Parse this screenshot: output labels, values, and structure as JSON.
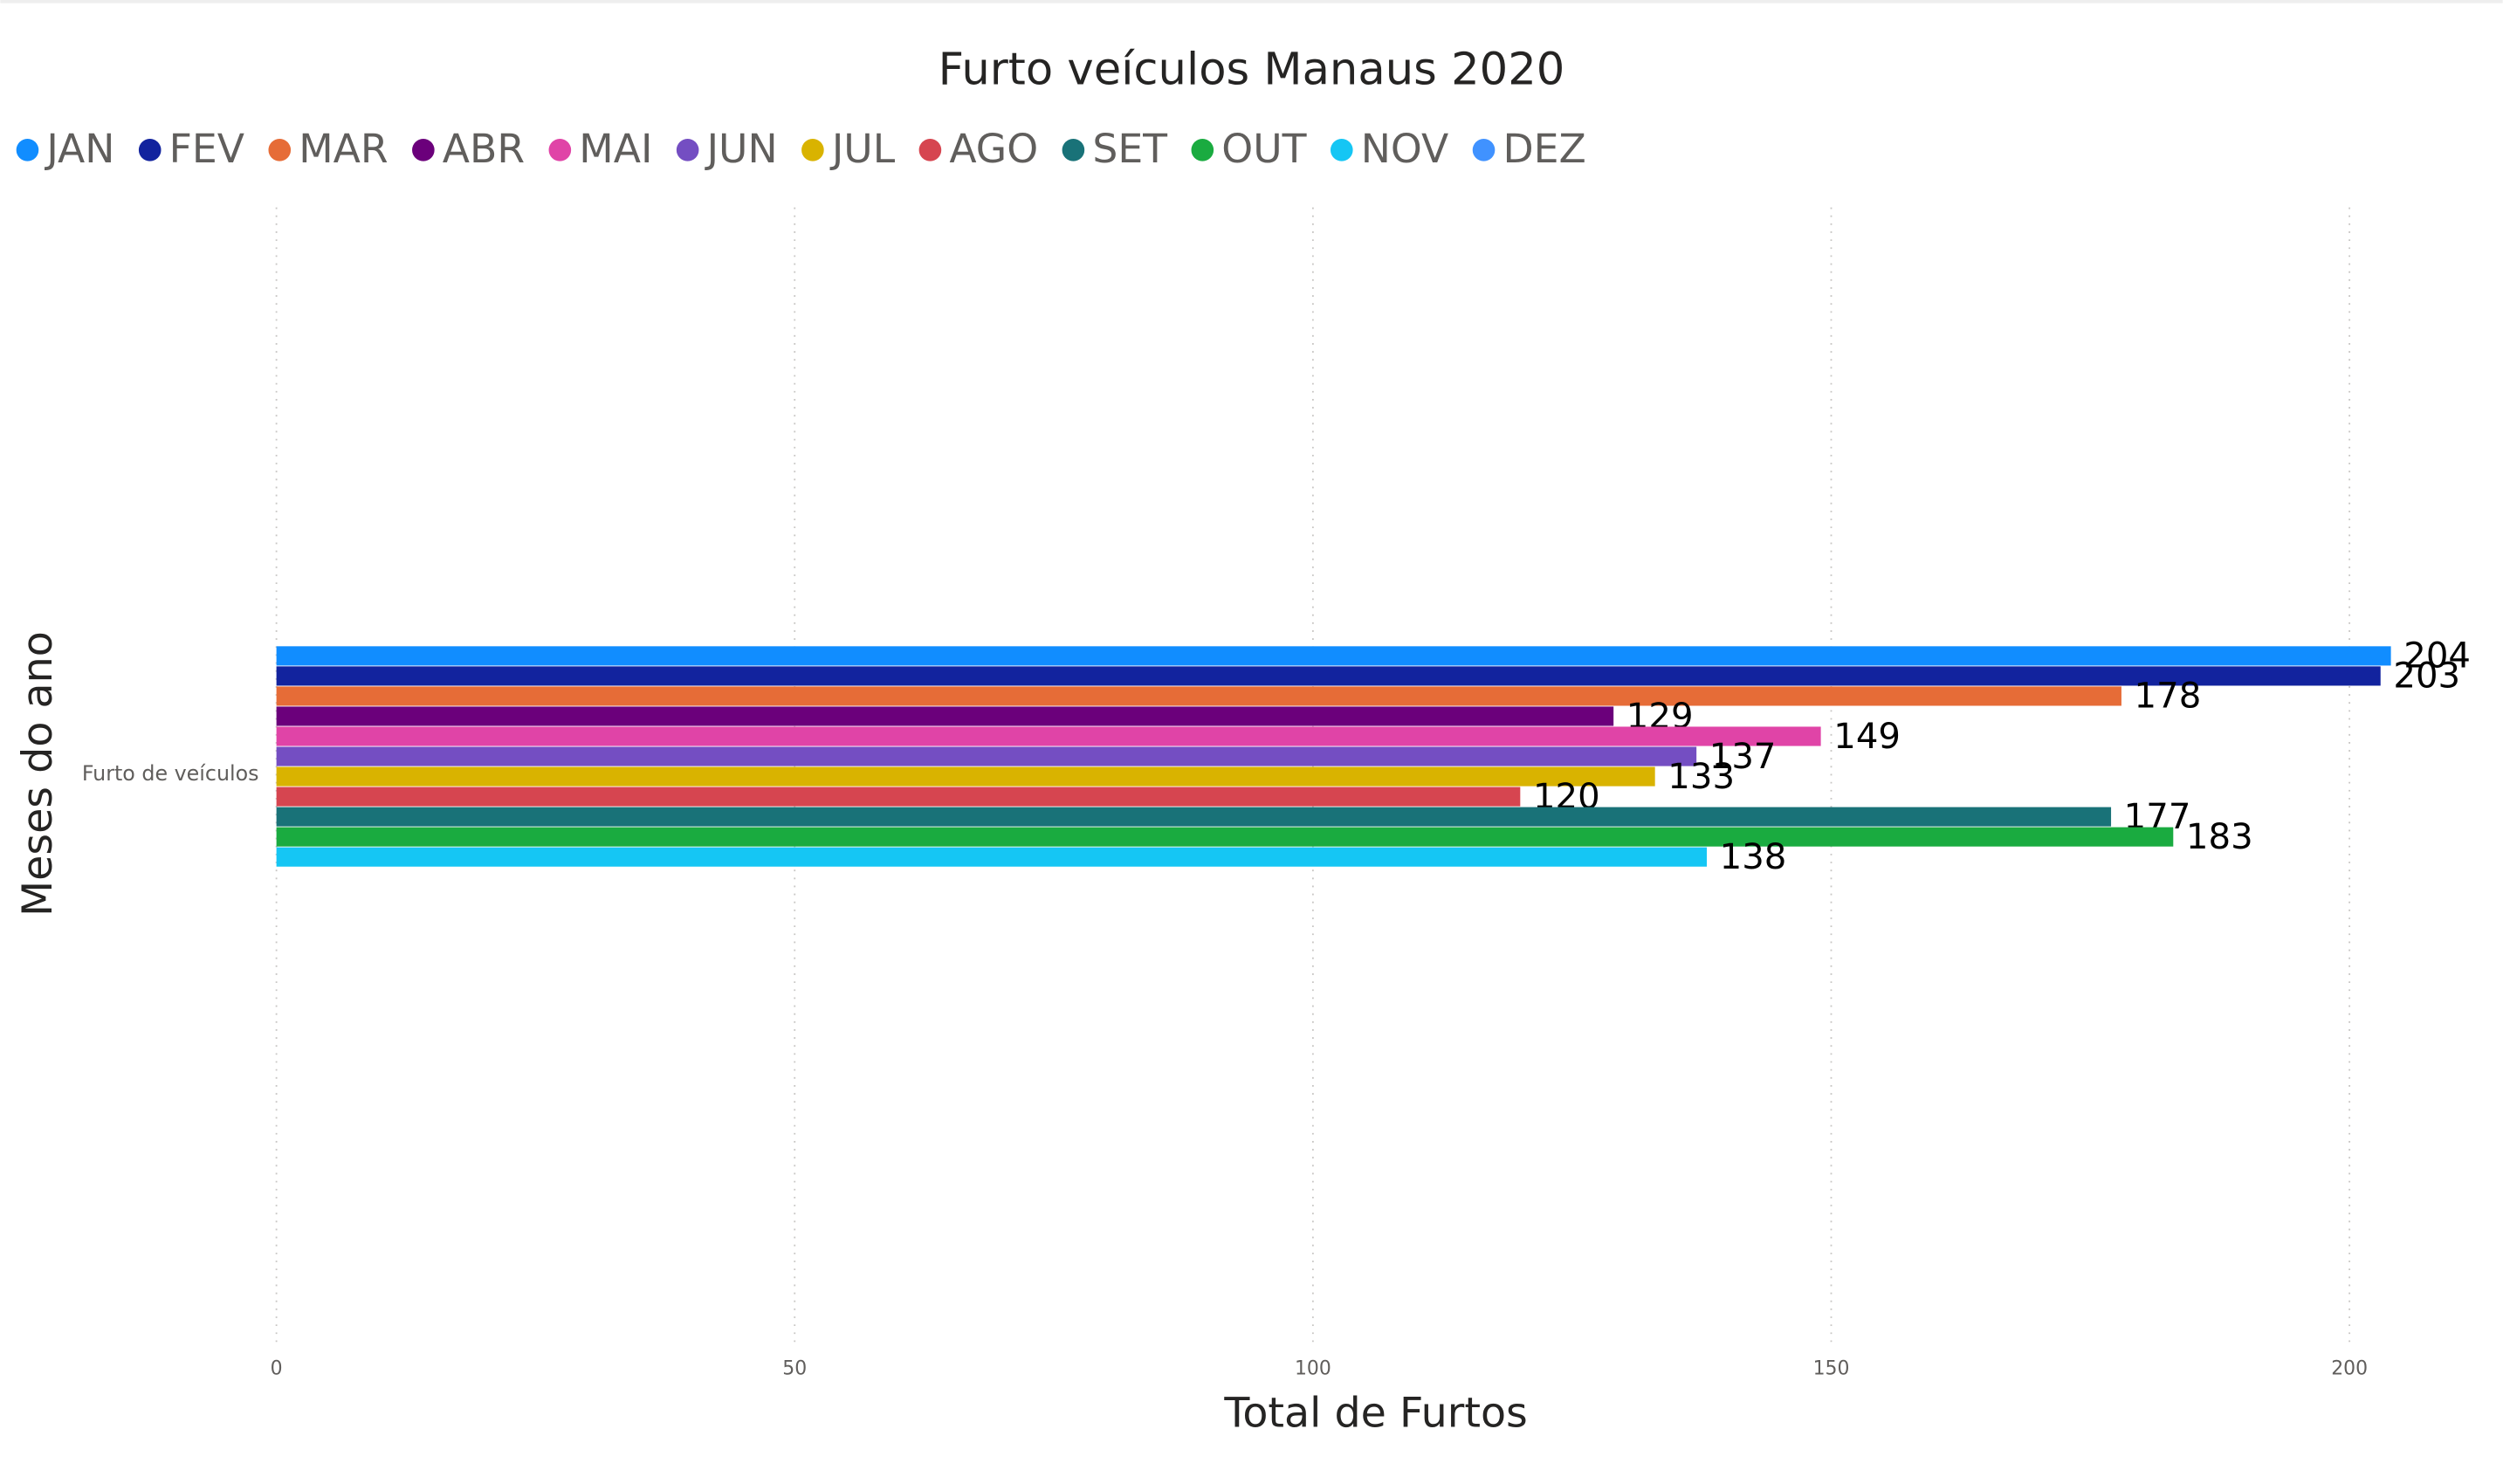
{
  "chart_data": {
    "type": "bar",
    "orientation": "horizontal",
    "title": "Furto veículos Manaus 2020",
    "x_label": "Total de Furtos",
    "y_label": "Meses do ano",
    "categories": [
      "Furto de veículos"
    ],
    "series": [
      {
        "name": "JAN",
        "color": "#118DFF",
        "values": [
          204
        ]
      },
      {
        "name": "FEV",
        "color": "#12239E",
        "values": [
          203
        ]
      },
      {
        "name": "MAR",
        "color": "#E66C37",
        "values": [
          178
        ]
      },
      {
        "name": "ABR",
        "color": "#6B007B",
        "values": [
          129
        ]
      },
      {
        "name": "MAI",
        "color": "#E044A7",
        "values": [
          149
        ]
      },
      {
        "name": "JUN",
        "color": "#744EC2",
        "values": [
          137
        ]
      },
      {
        "name": "JUL",
        "color": "#D9B300",
        "values": [
          133
        ]
      },
      {
        "name": "AGO",
        "color": "#D64550",
        "values": [
          120
        ]
      },
      {
        "name": "SET",
        "color": "#197278",
        "values": [
          177
        ]
      },
      {
        "name": "OUT",
        "color": "#1AAB40",
        "values": [
          183
        ]
      },
      {
        "name": "NOV",
        "color": "#15C6F4",
        "values": [
          138
        ]
      },
      {
        "name": "DEZ",
        "color": "#4092FF",
        "values": [
          null
        ]
      }
    ],
    "xlim": [
      0,
      210
    ],
    "xticks": [
      0,
      50,
      100,
      150,
      200
    ],
    "grid": true,
    "legend": "top-left"
  }
}
